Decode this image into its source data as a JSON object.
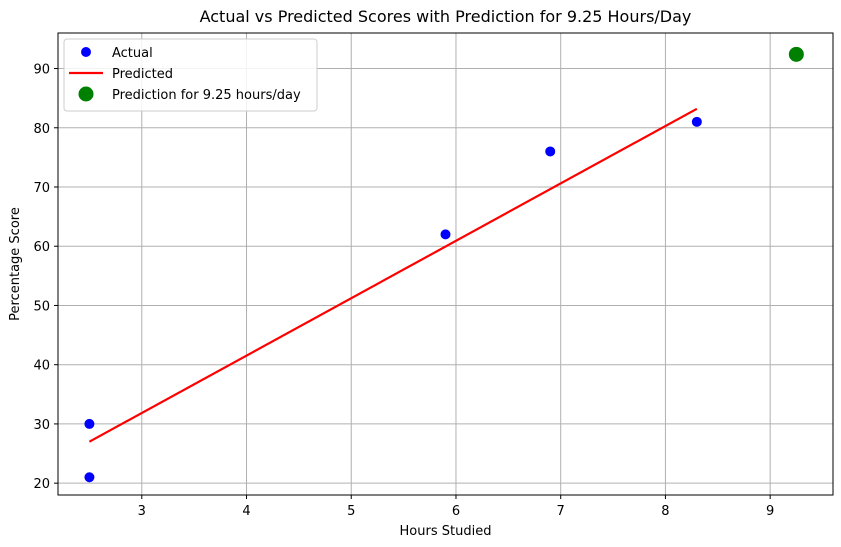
{
  "chart_data": {
    "type": "scatter",
    "title": "Actual vs Predicted Scores with Prediction for 9.25 Hours/Day",
    "xlabel": "Hours Studied",
    "ylabel": "Percentage Score",
    "xlim": [
      2.2,
      9.6
    ],
    "ylim": [
      18,
      96
    ],
    "xticks": [
      3,
      4,
      5,
      6,
      7,
      8,
      9
    ],
    "yticks": [
      20,
      30,
      40,
      50,
      60,
      70,
      80,
      90
    ],
    "grid": true,
    "legend_position": "top-left",
    "series": [
      {
        "name": "Actual",
        "kind": "scatter",
        "color": "#0000ff",
        "points": [
          [
            2.5,
            21
          ],
          [
            2.5,
            30
          ],
          [
            5.9,
            62
          ],
          [
            6.9,
            76
          ],
          [
            8.3,
            81
          ]
        ]
      },
      {
        "name": "Predicted",
        "kind": "line",
        "color": "#ff0000",
        "points": [
          [
            2.5,
            27
          ],
          [
            8.3,
            83.2
          ]
        ]
      },
      {
        "name": "Prediction for 9.25 hours/day",
        "kind": "scatter",
        "color": "#008000",
        "points": [
          [
            9.25,
            92.4
          ]
        ]
      }
    ]
  }
}
